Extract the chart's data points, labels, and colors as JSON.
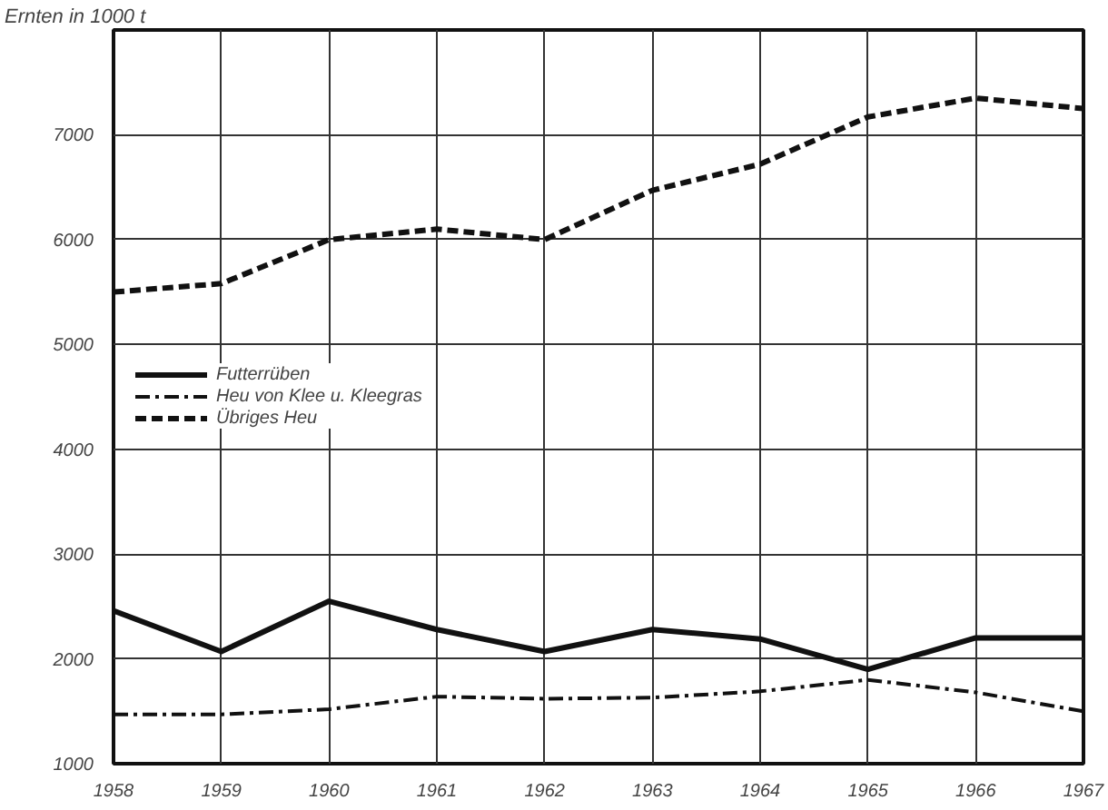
{
  "chart_data": {
    "type": "line",
    "ylabel": "Ernten in 1000 t",
    "x": [
      1958,
      1959,
      1960,
      1961,
      1962,
      1963,
      1964,
      1965,
      1966,
      1967
    ],
    "xlim": [
      1958,
      1967
    ],
    "xticks": [
      1958,
      1959,
      1960,
      1961,
      1962,
      1963,
      1964,
      1965,
      1966,
      1967
    ],
    "ylim": [
      1000,
      8000
    ],
    "yticks": [
      1000,
      2000,
      3000,
      4000,
      5000,
      6000,
      7000
    ],
    "grid": true,
    "legend": "left",
    "series": [
      {
        "name": "Futterrüben",
        "color": "#111111",
        "line_style": "solid",
        "values": [
          2460,
          2070,
          2550,
          2280,
          2070,
          2280,
          2190,
          1900,
          2200,
          2200
        ]
      },
      {
        "name": "Heu von Klee u. Kleegras",
        "color": "#111111",
        "line_style": "dashdot",
        "values": [
          1470,
          1470,
          1520,
          1640,
          1620,
          1630,
          1690,
          1800,
          1680,
          1500
        ]
      },
      {
        "name": "Übriges Heu",
        "color": "#111111",
        "line_style": "dashed",
        "values": [
          5500,
          5580,
          6000,
          6100,
          6000,
          6470,
          6720,
          7170,
          7350,
          7250
        ]
      }
    ]
  }
}
